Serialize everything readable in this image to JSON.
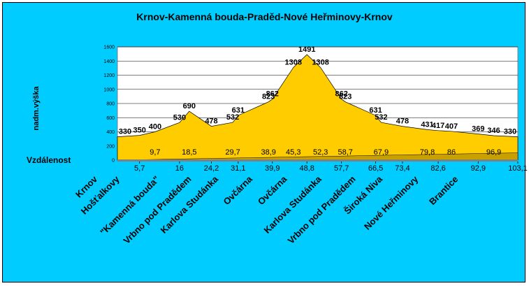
{
  "chart_data": {
    "type": "area",
    "title": "Krnov-Kamenná bouda-Praděd-Nové Heřminovy-Krnov",
    "ylabel": "nadm.výška",
    "row_label": "Vzdálenost",
    "ylim": [
      0,
      1600
    ],
    "yticks": [
      "0",
      "200",
      "400",
      "600",
      "800",
      "1000",
      "1200",
      "1400",
      "1600"
    ],
    "grid": true,
    "colors": {
      "background": "#00ccff",
      "area": "#ffcc00",
      "distance_area": "#c8a000",
      "baseline_fill": "#808080"
    },
    "x": [
      0,
      5.7,
      9.7,
      16,
      18.5,
      24.2,
      29.7,
      31.1,
      38.9,
      39.9,
      45.3,
      48.8,
      52.3,
      57.7,
      58.7,
      66.5,
      67.9,
      73.4,
      79.8,
      82.6,
      86,
      92.9,
      96.9,
      103.1
    ],
    "altitude": [
      330,
      350,
      400,
      530,
      690,
      478,
      532,
      631,
      823,
      862,
      1308,
      1491,
      1308,
      862,
      823,
      631,
      532,
      478,
      431,
      417,
      407,
      369,
      346,
      330
    ],
    "altitude_labels": [
      "330",
      "350",
      "400",
      "530",
      "690",
      "478",
      "532",
      "631",
      "823",
      "862",
      "1308",
      "1491",
      "1308",
      "862",
      "823",
      "631",
      "532",
      "478",
      "431",
      "417",
      "407",
      "369",
      "346",
      "330"
    ],
    "distance_labels": [
      "9,7",
      "18,5",
      "29,7",
      "38,9",
      "45,3",
      "52,3",
      "58,7",
      "67,9",
      "79,8",
      "86",
      "96,9"
    ],
    "distance_points": [
      9.7,
      18.5,
      29.7,
      38.9,
      45.3,
      52.3,
      58.7,
      67.9,
      79.8,
      86,
      96.9
    ],
    "xticks": [
      "5,7",
      "16",
      "24,2",
      "31,1",
      "39,9",
      "48,8",
      "57,7",
      "66,5",
      "73,4",
      "82,6",
      "92,9",
      "103,1"
    ],
    "places": [
      "Krnov",
      "Hošťalkovy",
      "\"Kamenná bouda\"",
      "Vrbno pod Pradědem",
      "Karlova Studánka",
      "Ovčárna",
      "Ovčárna",
      "Karlova Studánka",
      "Vrbno pod Pradědem",
      "Široká Niva",
      "Nové Heřminovy",
      "Brantice"
    ]
  }
}
